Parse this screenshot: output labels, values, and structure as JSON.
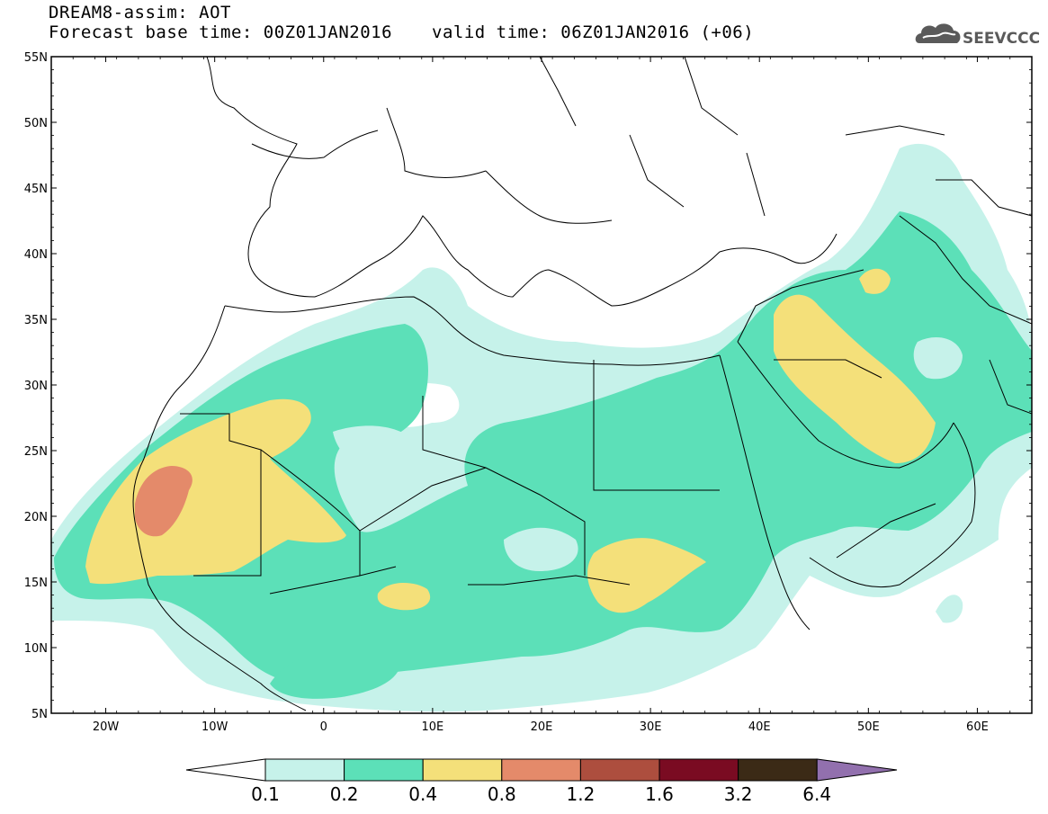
{
  "header": {
    "title": "DREAM8-assim: AOT",
    "base_time": "Forecast base time: 00Z01JAN2016",
    "valid_time": "valid time: 06Z01JAN2016 (+06)"
  },
  "logo": {
    "text": "SEEVCCC"
  },
  "map": {
    "lat_labels": [
      "55N",
      "50N",
      "45N",
      "40N",
      "35N",
      "30N",
      "25N",
      "20N",
      "15N",
      "10N",
      "5N"
    ],
    "lon_labels": [
      "20W",
      "10W",
      "0",
      "10E",
      "20E",
      "30E",
      "40E",
      "50E",
      "60E"
    ]
  },
  "colorbar": {
    "labels": [
      "0.1",
      "0.2",
      "0.4",
      "0.8",
      "1.2",
      "1.6",
      "3.2",
      "6.4"
    ],
    "colors": [
      "#c6f2ea",
      "#5ce0b8",
      "#f4e07a",
      "#e48a6a",
      "#ad4e3e",
      "#7a0b22",
      "#3b2a16",
      "#9270ae"
    ]
  }
}
